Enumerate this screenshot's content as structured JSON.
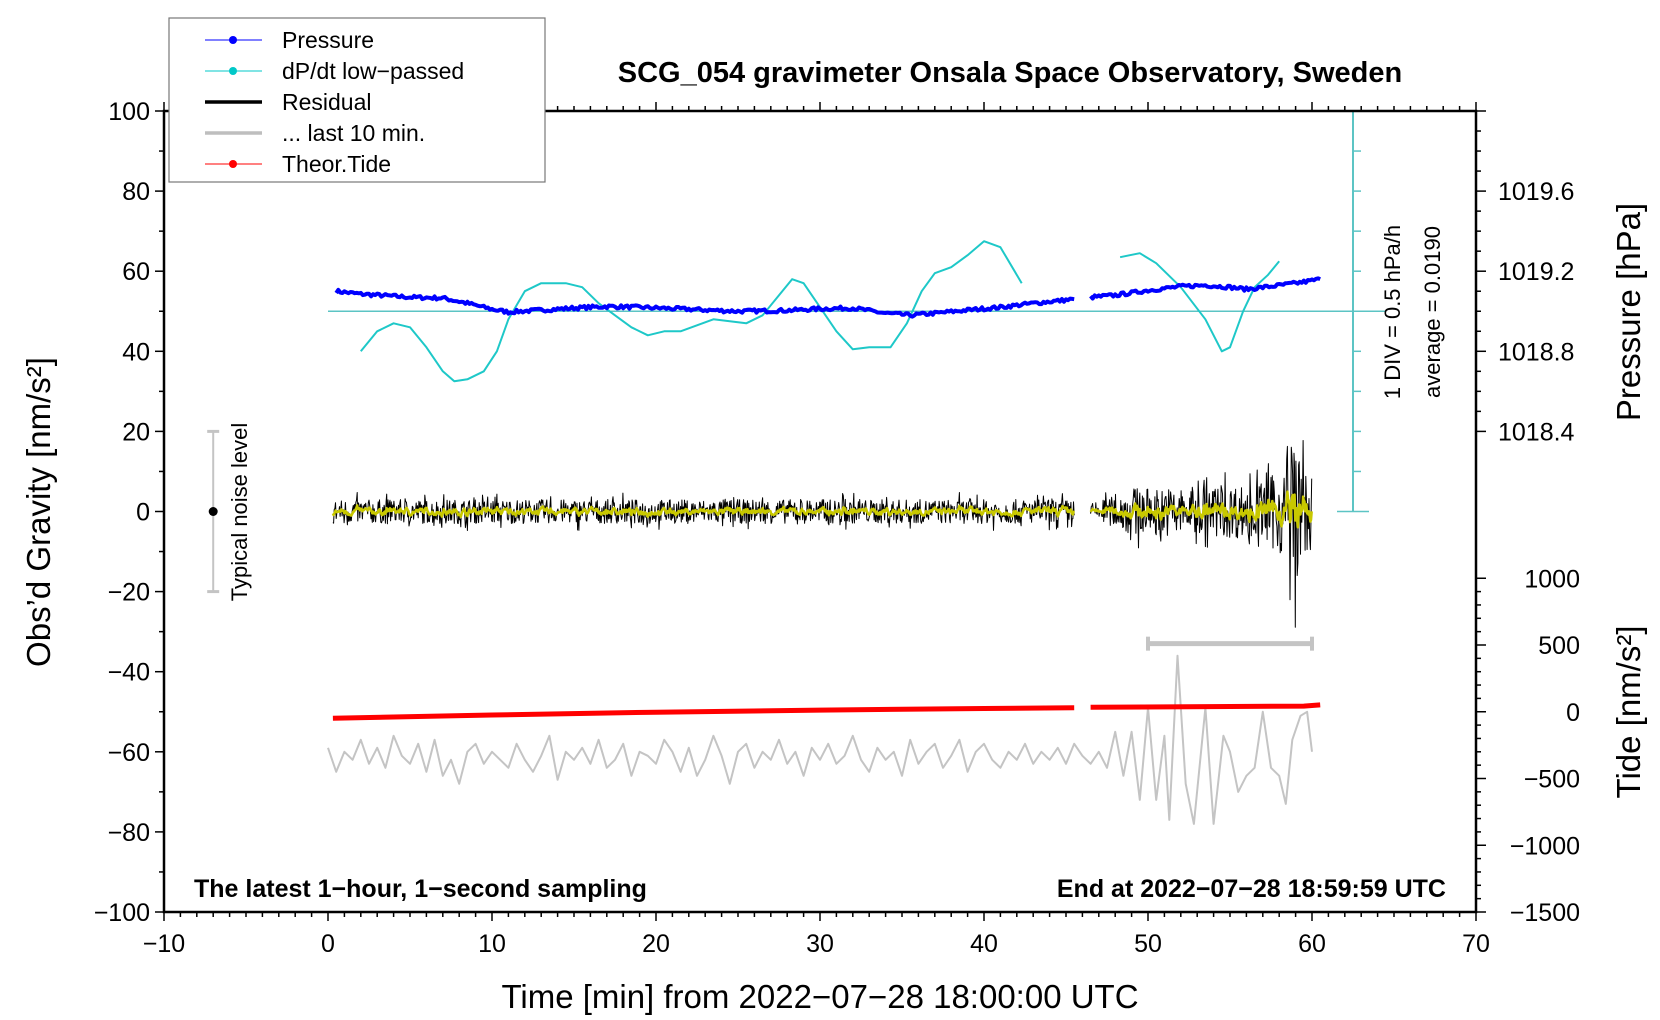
{
  "chart_data": {
    "type": "line",
    "title": "SCG_054 gravimeter Onsala Space Observatory, Sweden",
    "xlabel": "Time [min] from 2022−07−28 18:00:00 UTC",
    "ylabel": "Obs’d Gravity [nm/s²]",
    "y2label": "Pressure [hPa]",
    "y3label": "Tide [nm/s²]",
    "xlim": [
      -10,
      70
    ],
    "ylim": [
      -100,
      100
    ],
    "xticks": [
      -10,
      0,
      10,
      20,
      30,
      40,
      50,
      60,
      70
    ],
    "xtick_labels": [
      "−10",
      "0",
      "10",
      "20",
      "30",
      "40",
      "50",
      "60",
      "70"
    ],
    "yticks": [
      100,
      80,
      60,
      40,
      20,
      0,
      -20,
      -40,
      -60,
      -80,
      -100
    ],
    "ytick_labels": [
      "100",
      "80",
      "60",
      "40",
      "20",
      "0",
      "−20",
      "−40",
      "−60",
      "−80",
      "−100"
    ],
    "pressure_axis": {
      "ticks": [
        1019.6,
        1019.2,
        1018.8,
        1018.4
      ],
      "labels": [
        "1019.6",
        "1019.2",
        "1018.8",
        "1018.4"
      ],
      "hpa_at_gravity_0": 1018.0,
      "gravity_units_per_hpa": 50
    },
    "tide_axis": {
      "ticks": [
        1000,
        500,
        0,
        -500,
        -1000,
        -1500
      ],
      "labels": [
        "1000",
        "500",
        "0",
        "−500",
        "−1000",
        "−1500"
      ],
      "gravity_at_tide_0": -50,
      "tide_per_gravity_unit": 30
    },
    "legend": {
      "placement": "top-left",
      "entries": [
        {
          "label": "Pressure",
          "color": "#0000ff",
          "marker": true
        },
        {
          "label": "dP/dt low−passed",
          "color": "#00c8c8",
          "marker": true
        },
        {
          "label": "Residual",
          "color": "#000000",
          "marker": false
        },
        {
          "label": "... last 10 min.",
          "color": "#bebebe",
          "marker": false
        },
        {
          "label": "Theor.Tide",
          "color": "#ff0000",
          "marker": true
        }
      ]
    },
    "annotations": {
      "left_note": "The latest 1−hour, 1−second sampling",
      "right_note": "End at 2022−07−28 18:59:59 UTC",
      "scale_bar_div": "1 DIV = 0.5 hPa/h",
      "scale_bar_avg": "average = 0.0190",
      "noise_label": "Typical noise level",
      "noise_level_range": [
        -20,
        20
      ]
    },
    "series": [
      {
        "name": "Pressure",
        "color": "#0000ff",
        "segments": [
          [
            [
              0.5,
              55
            ],
            [
              2,
              54.3
            ],
            [
              5,
              53.5
            ],
            [
              7,
              53.3
            ],
            [
              8.5,
              52
            ],
            [
              10,
              50.5
            ],
            [
              11,
              49.8
            ],
            [
              13,
              50.3
            ],
            [
              15,
              50.8
            ],
            [
              17,
              51.2
            ],
            [
              19,
              51
            ],
            [
              22,
              50.5
            ],
            [
              25,
              50
            ],
            [
              28,
              50.2
            ],
            [
              30,
              50.6
            ],
            [
              32,
              50.8
            ],
            [
              34,
              49.5
            ],
            [
              35.5,
              49
            ],
            [
              37,
              49.5
            ],
            [
              39,
              50.3
            ],
            [
              41,
              51
            ],
            [
              43,
              52
            ],
            [
              45.5,
              53
            ]
          ],
          [
            [
              46.5,
              53.5
            ],
            [
              48,
              54
            ],
            [
              50,
              55.2
            ],
            [
              52,
              56.2
            ],
            [
              53.5,
              56.5
            ],
            [
              55,
              56
            ],
            [
              56,
              55.5
            ],
            [
              57.5,
              56.2
            ],
            [
              59,
              57
            ],
            [
              60.5,
              58
            ]
          ]
        ]
      },
      {
        "name": "dP/dt low-passed",
        "color": "#00c8c8",
        "segments": [
          [
            [
              2,
              40
            ],
            [
              3,
              45
            ],
            [
              4,
              47
            ],
            [
              5,
              46
            ],
            [
              6,
              41
            ],
            [
              7,
              35
            ],
            [
              7.7,
              32.5
            ],
            [
              8.5,
              33
            ],
            [
              9.5,
              35
            ],
            [
              10.3,
              40
            ],
            [
              11,
              48
            ],
            [
              12,
              55
            ],
            [
              13,
              57
            ],
            [
              14.5,
              57
            ],
            [
              15.5,
              56
            ],
            [
              16.5,
              52
            ],
            [
              17.5,
              49
            ],
            [
              18.5,
              46
            ],
            [
              19.5,
              44
            ],
            [
              20.5,
              45
            ],
            [
              21.5,
              45
            ],
            [
              22.5,
              46.5
            ],
            [
              23.5,
              48
            ],
            [
              24.5,
              47.5
            ],
            [
              25.5,
              47
            ],
            [
              26.5,
              49
            ],
            [
              27.5,
              54
            ],
            [
              28.3,
              58
            ],
            [
              29,
              57
            ],
            [
              30,
              51
            ],
            [
              31,
              45
            ],
            [
              32,
              40.5
            ],
            [
              33,
              41
            ],
            [
              34.3,
              41
            ],
            [
              35.3,
              47
            ],
            [
              36.2,
              55
            ],
            [
              37,
              59.5
            ],
            [
              38,
              61
            ],
            [
              39,
              64
            ],
            [
              40,
              67.5
            ],
            [
              41,
              66
            ],
            [
              42.3,
              57
            ]
          ],
          [
            [
              48.3,
              63.5
            ],
            [
              49.5,
              64.5
            ],
            [
              50.5,
              62
            ],
            [
              52,
              56
            ],
            [
              53.5,
              48
            ],
            [
              54.5,
              40
            ],
            [
              55,
              41
            ],
            [
              55.8,
              50
            ],
            [
              56.5,
              56
            ],
            [
              57.3,
              59
            ],
            [
              58,
              62.5
            ]
          ]
        ]
      },
      {
        "name": "Residual",
        "color": "#000000",
        "smoothed_color": "#c8c800",
        "noise_envelope": [
          [
            [
              0.3,
              3
            ],
            [
              45.5,
              3
            ]
          ],
          [
            [
              46.5,
              2
            ],
            [
              48,
              4
            ],
            [
              49,
              6
            ],
            [
              52,
              6
            ],
            [
              57,
              7
            ],
            [
              58.3,
              12
            ],
            [
              58.7,
              25
            ],
            [
              59.3,
              12
            ],
            [
              60,
              10
            ]
          ]
        ]
      },
      {
        "name": "... last 10 min.",
        "color": "#bebebe",
        "segments": [
          [
            [
              0,
              -59
            ],
            [
              0.5,
              -65
            ],
            [
              1,
              -60
            ],
            [
              1.5,
              -62
            ],
            [
              2,
              -57
            ],
            [
              2.5,
              -63
            ],
            [
              3,
              -59
            ],
            [
              3.5,
              -64
            ],
            [
              4,
              -56
            ],
            [
              4.5,
              -61
            ],
            [
              5,
              -63
            ],
            [
              5.5,
              -58
            ],
            [
              6,
              -65
            ],
            [
              6.5,
              -57
            ],
            [
              7,
              -66
            ],
            [
              7.5,
              -62
            ],
            [
              8,
              -68
            ],
            [
              8.5,
              -60
            ],
            [
              9,
              -58
            ],
            [
              9.5,
              -63
            ],
            [
              10,
              -60
            ],
            [
              10.5,
              -62
            ],
            [
              11,
              -64
            ],
            [
              11.5,
              -58
            ],
            [
              12,
              -62
            ],
            [
              12.5,
              -65
            ],
            [
              13,
              -61
            ],
            [
              13.5,
              -56
            ],
            [
              14,
              -67
            ],
            [
              14.5,
              -60
            ],
            [
              15,
              -62
            ],
            [
              15.5,
              -59
            ],
            [
              16,
              -63
            ],
            [
              16.5,
              -57
            ],
            [
              17,
              -64
            ],
            [
              17.5,
              -62
            ],
            [
              18,
              -58
            ],
            [
              18.5,
              -66
            ],
            [
              19,
              -60
            ],
            [
              19.5,
              -61
            ],
            [
              20,
              -63
            ],
            [
              20.5,
              -57
            ],
            [
              21,
              -60
            ],
            [
              21.5,
              -65
            ],
            [
              22,
              -59
            ],
            [
              22.5,
              -66
            ],
            [
              23,
              -62
            ],
            [
              23.5,
              -56
            ],
            [
              24,
              -61
            ],
            [
              24.5,
              -68
            ],
            [
              25,
              -60
            ],
            [
              25.5,
              -58
            ],
            [
              26,
              -64
            ],
            [
              26.5,
              -60
            ],
            [
              27,
              -62
            ],
            [
              27.5,
              -57
            ],
            [
              28,
              -63
            ],
            [
              28.5,
              -60
            ],
            [
              29,
              -66
            ],
            [
              29.5,
              -59
            ],
            [
              30,
              -62
            ],
            [
              30.5,
              -58
            ],
            [
              31,
              -63
            ],
            [
              31.5,
              -61
            ],
            [
              32,
              -56
            ],
            [
              32.5,
              -62
            ],
            [
              33,
              -65
            ],
            [
              33.5,
              -59
            ],
            [
              34,
              -62
            ],
            [
              34.5,
              -60
            ],
            [
              35,
              -66
            ],
            [
              35.5,
              -57
            ],
            [
              36,
              -63
            ],
            [
              36.5,
              -60
            ],
            [
              37,
              -58
            ],
            [
              37.5,
              -64
            ],
            [
              38,
              -61
            ],
            [
              38.5,
              -57
            ],
            [
              39,
              -65
            ],
            [
              39.5,
              -60
            ],
            [
              40,
              -58
            ],
            [
              40.5,
              -62
            ],
            [
              41,
              -64
            ],
            [
              41.5,
              -60
            ],
            [
              42,
              -62
            ],
            [
              42.5,
              -58
            ],
            [
              43,
              -63
            ],
            [
              43.5,
              -60
            ],
            [
              44,
              -62
            ],
            [
              44.5,
              -59
            ],
            [
              45,
              -63
            ],
            [
              45.5,
              -58
            ],
            [
              46,
              -61
            ],
            [
              46.5,
              -63
            ],
            [
              47,
              -60
            ],
            [
              47.5,
              -64
            ],
            [
              48,
              -55
            ],
            [
              48.5,
              -66
            ],
            [
              49,
              -55
            ],
            [
              49.5,
              -72
            ],
            [
              50,
              -49
            ],
            [
              50.5,
              -72
            ],
            [
              51,
              -56
            ],
            [
              51.3,
              -77
            ],
            [
              51.8,
              -36
            ],
            [
              52.3,
              -68
            ],
            [
              52.8,
              -78
            ],
            [
              53.5,
              -49
            ],
            [
              54,
              -78
            ],
            [
              54.6,
              -56
            ],
            [
              55,
              -60
            ],
            [
              55.5,
              -70
            ],
            [
              56,
              -66
            ],
            [
              56.5,
              -64
            ],
            [
              57,
              -50
            ],
            [
              57.5,
              -64
            ],
            [
              58,
              -66
            ],
            [
              58.4,
              -73
            ],
            [
              58.8,
              -57
            ],
            [
              59.3,
              -51
            ],
            [
              59.7,
              -50
            ],
            [
              60,
              -60
            ]
          ]
        ]
      },
      {
        "name": "Theor.Tide",
        "color": "#ff0000",
        "segments": [
          [
            [
              0.3,
              -51.6
            ],
            [
              10,
              -50.8
            ],
            [
              20,
              -50.1
            ],
            [
              30,
              -49.6
            ],
            [
              40,
              -49.2
            ],
            [
              45.5,
              -49.0
            ]
          ],
          [
            [
              46.5,
              -48.9
            ],
            [
              55,
              -48.7
            ],
            [
              59.5,
              -48.6
            ],
            [
              60.5,
              -48.3
            ]
          ]
        ]
      }
    ],
    "pressure_baseline_gravity": 50,
    "scale_bar_x": 62.5,
    "last10_bracket": {
      "from": 50,
      "to": 60,
      "gravity": -33
    }
  }
}
